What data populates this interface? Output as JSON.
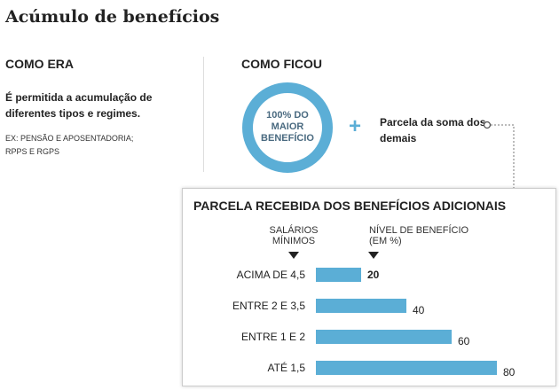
{
  "title": "Acúmulo de benefícios",
  "before": {
    "heading": "COMO ERA",
    "description": "É permitida a acumulação de diferentes tipos e regimes.",
    "examples_line1": "EX: PENSÃO E APOSENTADORIA;",
    "examples_line2": "RPPS E RGPS"
  },
  "after": {
    "heading": "COMO FICOU",
    "ring_line1": "100% DO",
    "ring_line2": "MAIOR",
    "ring_line3": "BENEFÍCIO",
    "plus_symbol": "+",
    "portion_label": "Parcela da soma dos demais"
  },
  "colors": {
    "accent": "#5baed6",
    "ring_text": "#4a6a80"
  },
  "icons": {
    "ring": "ring-icon",
    "plus": "plus-icon",
    "connector": "dotted-connector-icon",
    "pointer": "triangle-down-icon"
  },
  "chart_data": {
    "type": "bar",
    "orientation": "horizontal",
    "title": "PARCELA RECEBIDA DOS BENEFÍCIOS ADICIONAIS",
    "category_header_line1": "SALÁRIOS",
    "category_header_line2": "MÍNIMOS",
    "value_header_line1": "NÍVEL DE BENEFÍCIO",
    "value_header_line2": "(EM %)",
    "categories": [
      "ACIMA DE 4,5",
      "ENTRE 2 E 3,5",
      "ENTRE 1 E 2",
      "ATÉ 1,5"
    ],
    "values": [
      20,
      40,
      60,
      80
    ],
    "value_labels": [
      "20",
      "40",
      "60",
      "80"
    ],
    "xlim": [
      0,
      80
    ],
    "bar_color": "#5baed6",
    "grid": false,
    "legend": "none"
  }
}
